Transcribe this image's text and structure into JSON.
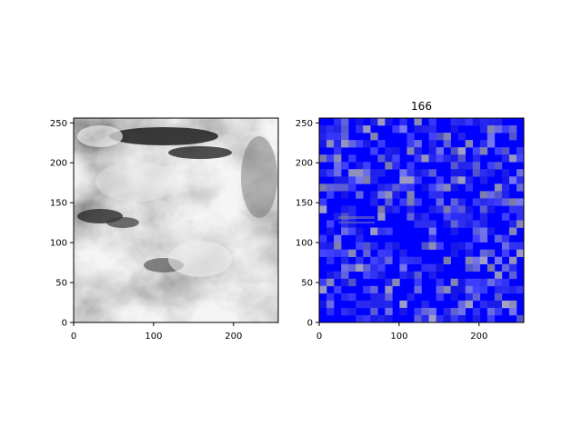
{
  "figure": {
    "background": "#ffffff"
  },
  "chart_data": [
    {
      "type": "heatmap",
      "title": "",
      "xlabel": "",
      "ylabel": "",
      "xlim": [
        0,
        256
      ],
      "ylim": [
        0,
        256
      ],
      "xticks": [
        0,
        100,
        200
      ],
      "yticks": [
        0,
        50,
        100,
        150,
        200,
        250
      ],
      "colormap": "grayscale",
      "content": "grayscale satellite-style cloud imagery"
    },
    {
      "type": "heatmap",
      "title": "166",
      "xlabel": "",
      "ylabel": "",
      "xlim": [
        0,
        256
      ],
      "ylim": [
        0,
        256
      ],
      "xticks": [
        0,
        100,
        200
      ],
      "yticks": [
        0,
        50,
        100,
        150,
        200,
        250
      ],
      "colormap": "blue-dominant blocky tiles",
      "content": "mostly saturated blue mosaic with grayish blue blocks"
    }
  ],
  "colors": {
    "blue": "#0000ff",
    "blue_gray": "#5c63c4",
    "frame": "#000000"
  }
}
